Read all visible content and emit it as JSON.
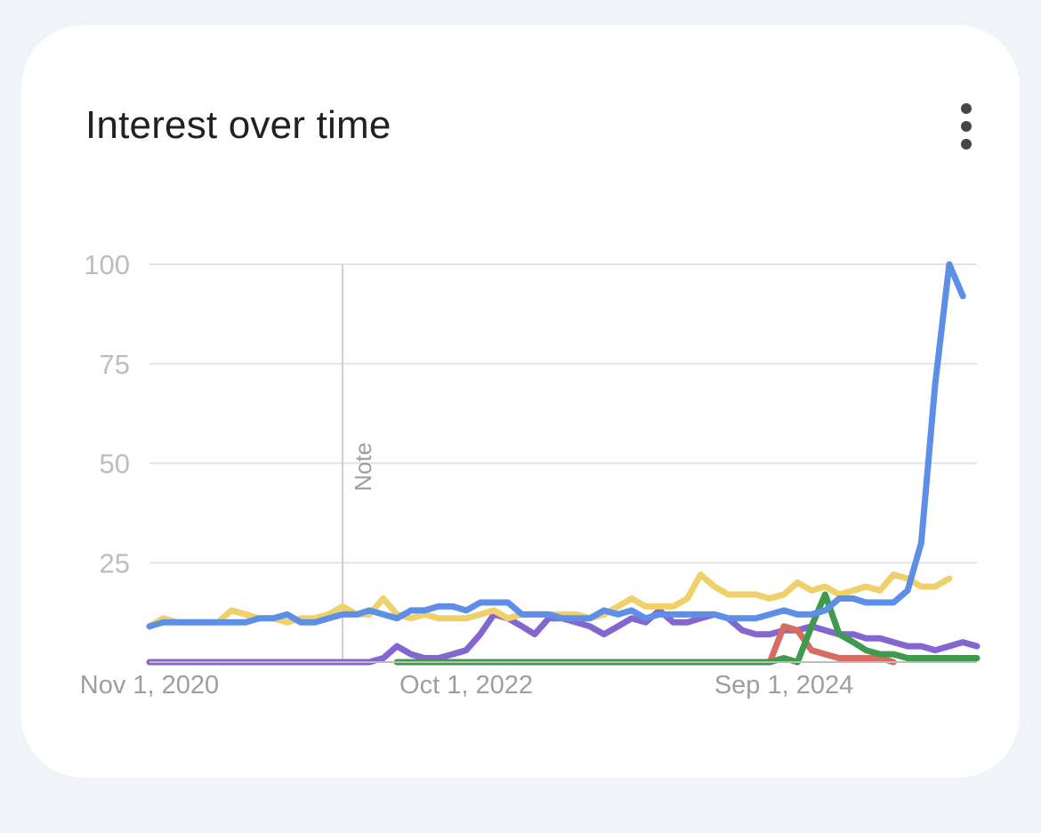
{
  "card": {
    "title": "Interest over time",
    "menu_icon": "more-vert-icon"
  },
  "chart_data": {
    "type": "line",
    "x_range": [
      "2020-11-01",
      "2025-11-01"
    ],
    "xtick_labels": [
      "Nov 1, 2020",
      "Oct 1, 2022",
      "Sep 1, 2024"
    ],
    "xtick_dates": [
      "2020-11-01",
      "2022-10-01",
      "2024-09-01"
    ],
    "ylim": [
      0,
      100
    ],
    "yticks": [
      25,
      50,
      75,
      100
    ],
    "grid": true,
    "annotation": {
      "label": "Note",
      "date": "2022-01-01"
    },
    "series": [
      {
        "color": "#5e8fe8",
        "points": [
          [
            "2020-11-01",
            9
          ],
          [
            "2020-12-01",
            10
          ],
          [
            "2021-01-01",
            10
          ],
          [
            "2021-02-01",
            10
          ],
          [
            "2021-03-01",
            10
          ],
          [
            "2021-04-01",
            10
          ],
          [
            "2021-05-01",
            10
          ],
          [
            "2021-06-01",
            10
          ],
          [
            "2021-07-01",
            11
          ],
          [
            "2021-08-01",
            11
          ],
          [
            "2021-09-01",
            12
          ],
          [
            "2021-10-01",
            10
          ],
          [
            "2021-11-01",
            10
          ],
          [
            "2021-12-01",
            11
          ],
          [
            "2022-01-01",
            12
          ],
          [
            "2022-02-01",
            12
          ],
          [
            "2022-03-01",
            13
          ],
          [
            "2022-04-01",
            12
          ],
          [
            "2022-05-01",
            11
          ],
          [
            "2022-06-01",
            13
          ],
          [
            "2022-07-01",
            13
          ],
          [
            "2022-08-01",
            14
          ],
          [
            "2022-09-01",
            14
          ],
          [
            "2022-10-01",
            13
          ],
          [
            "2022-11-01",
            15
          ],
          [
            "2022-12-01",
            15
          ],
          [
            "2023-01-01",
            15
          ],
          [
            "2023-02-01",
            12
          ],
          [
            "2023-03-01",
            12
          ],
          [
            "2023-04-01",
            12
          ],
          [
            "2023-05-01",
            11
          ],
          [
            "2023-06-01",
            11
          ],
          [
            "2023-07-01",
            11
          ],
          [
            "2023-08-01",
            13
          ],
          [
            "2023-09-01",
            12
          ],
          [
            "2023-10-01",
            13
          ],
          [
            "2023-11-01",
            11
          ],
          [
            "2023-12-01",
            12
          ],
          [
            "2024-01-01",
            12
          ],
          [
            "2024-02-01",
            12
          ],
          [
            "2024-03-01",
            12
          ],
          [
            "2024-04-01",
            12
          ],
          [
            "2024-05-01",
            11
          ],
          [
            "2024-06-01",
            11
          ],
          [
            "2024-07-01",
            11
          ],
          [
            "2024-08-01",
            12
          ],
          [
            "2024-09-01",
            13
          ],
          [
            "2024-10-01",
            12
          ],
          [
            "2024-11-01",
            12
          ],
          [
            "2024-12-01",
            13
          ],
          [
            "2025-01-01",
            16
          ],
          [
            "2025-02-01",
            16
          ],
          [
            "2025-03-01",
            15
          ],
          [
            "2025-04-01",
            15
          ],
          [
            "2025-05-01",
            15
          ],
          [
            "2025-06-01",
            18
          ],
          [
            "2025-07-01",
            30
          ],
          [
            "2025-08-01",
            70
          ],
          [
            "2025-09-01",
            100
          ],
          [
            "2025-10-01",
            92
          ]
        ]
      },
      {
        "color": "#efd06b",
        "points": [
          [
            "2020-11-01",
            9
          ],
          [
            "2020-12-01",
            11
          ],
          [
            "2021-01-01",
            10
          ],
          [
            "2021-02-01",
            10
          ],
          [
            "2021-03-01",
            10
          ],
          [
            "2021-04-01",
            10
          ],
          [
            "2021-05-01",
            13
          ],
          [
            "2021-06-01",
            12
          ],
          [
            "2021-07-01",
            11
          ],
          [
            "2021-08-01",
            11
          ],
          [
            "2021-09-01",
            10
          ],
          [
            "2021-10-01",
            11
          ],
          [
            "2021-11-01",
            11
          ],
          [
            "2021-12-01",
            12
          ],
          [
            "2022-01-01",
            14
          ],
          [
            "2022-02-01",
            12
          ],
          [
            "2022-03-01",
            12
          ],
          [
            "2022-04-01",
            16
          ],
          [
            "2022-05-01",
            12
          ],
          [
            "2022-06-01",
            11
          ],
          [
            "2022-07-01",
            12
          ],
          [
            "2022-08-01",
            11
          ],
          [
            "2022-09-01",
            11
          ],
          [
            "2022-10-01",
            11
          ],
          [
            "2022-11-01",
            12
          ],
          [
            "2022-12-01",
            13
          ],
          [
            "2023-01-01",
            11
          ],
          [
            "2023-02-01",
            12
          ],
          [
            "2023-03-01",
            12
          ],
          [
            "2023-04-01",
            12
          ],
          [
            "2023-05-01",
            12
          ],
          [
            "2023-06-01",
            12
          ],
          [
            "2023-07-01",
            11
          ],
          [
            "2023-08-01",
            12
          ],
          [
            "2023-09-01",
            14
          ],
          [
            "2023-10-01",
            16
          ],
          [
            "2023-11-01",
            14
          ],
          [
            "2023-12-01",
            14
          ],
          [
            "2024-01-01",
            14
          ],
          [
            "2024-02-01",
            16
          ],
          [
            "2024-03-01",
            22
          ],
          [
            "2024-04-01",
            19
          ],
          [
            "2024-05-01",
            17
          ],
          [
            "2024-06-01",
            17
          ],
          [
            "2024-07-01",
            17
          ],
          [
            "2024-08-01",
            16
          ],
          [
            "2024-09-01",
            17
          ],
          [
            "2024-10-01",
            20
          ],
          [
            "2024-11-01",
            18
          ],
          [
            "2024-12-01",
            19
          ],
          [
            "2025-01-01",
            17
          ],
          [
            "2025-02-01",
            18
          ],
          [
            "2025-03-01",
            19
          ],
          [
            "2025-04-01",
            18
          ],
          [
            "2025-05-01",
            22
          ],
          [
            "2025-06-01",
            21
          ],
          [
            "2025-07-01",
            19
          ],
          [
            "2025-08-01",
            19
          ],
          [
            "2025-09-01",
            21
          ]
        ]
      },
      {
        "color": "#8466d0",
        "points": [
          [
            "2020-11-01",
            0
          ],
          [
            "2021-06-01",
            0
          ],
          [
            "2022-03-01",
            0
          ],
          [
            "2022-04-01",
            1
          ],
          [
            "2022-05-01",
            4
          ],
          [
            "2022-06-01",
            2
          ],
          [
            "2022-07-01",
            1
          ],
          [
            "2022-08-01",
            1
          ],
          [
            "2022-09-01",
            2
          ],
          [
            "2022-10-01",
            3
          ],
          [
            "2022-11-01",
            7
          ],
          [
            "2022-12-01",
            12
          ],
          [
            "2023-01-01",
            11
          ],
          [
            "2023-02-01",
            9
          ],
          [
            "2023-03-01",
            7
          ],
          [
            "2023-04-01",
            11
          ],
          [
            "2023-05-01",
            11
          ],
          [
            "2023-06-01",
            10
          ],
          [
            "2023-07-01",
            9
          ],
          [
            "2023-08-01",
            7
          ],
          [
            "2023-09-01",
            9
          ],
          [
            "2023-10-01",
            11
          ],
          [
            "2023-11-01",
            10
          ],
          [
            "2023-12-01",
            13
          ],
          [
            "2024-01-01",
            10
          ],
          [
            "2024-02-01",
            10
          ],
          [
            "2024-03-01",
            11
          ],
          [
            "2024-04-01",
            12
          ],
          [
            "2024-05-01",
            11
          ],
          [
            "2024-06-01",
            8
          ],
          [
            "2024-07-01",
            7
          ],
          [
            "2024-08-01",
            7
          ],
          [
            "2024-09-01",
            8
          ],
          [
            "2024-10-01",
            8
          ],
          [
            "2024-11-01",
            9
          ],
          [
            "2024-12-01",
            8
          ],
          [
            "2025-01-01",
            7
          ],
          [
            "2025-02-01",
            7
          ],
          [
            "2025-03-01",
            6
          ],
          [
            "2025-04-01",
            6
          ],
          [
            "2025-05-01",
            5
          ],
          [
            "2025-06-01",
            4
          ],
          [
            "2025-07-01",
            4
          ],
          [
            "2025-08-01",
            3
          ],
          [
            "2025-09-01",
            4
          ],
          [
            "2025-10-01",
            5
          ],
          [
            "2025-11-01",
            4
          ]
        ]
      },
      {
        "color": "#d66c62",
        "points": [
          [
            "2024-08-01",
            0
          ],
          [
            "2024-09-01",
            9
          ],
          [
            "2024-10-01",
            8
          ],
          [
            "2024-11-01",
            3
          ],
          [
            "2024-12-01",
            2
          ],
          [
            "2025-01-01",
            1
          ],
          [
            "2025-02-01",
            1
          ],
          [
            "2025-03-01",
            1
          ],
          [
            "2025-04-01",
            1
          ],
          [
            "2025-05-01",
            0
          ]
        ]
      },
      {
        "color": "#3f9a4d",
        "points": [
          [
            "2022-05-01",
            0
          ],
          [
            "2024-08-01",
            0
          ],
          [
            "2024-09-01",
            1
          ],
          [
            "2024-10-01",
            0
          ],
          [
            "2024-11-01",
            9
          ],
          [
            "2024-12-01",
            17
          ],
          [
            "2025-01-01",
            7
          ],
          [
            "2025-02-01",
            5
          ],
          [
            "2025-03-01",
            3
          ],
          [
            "2025-04-01",
            2
          ],
          [
            "2025-05-01",
            2
          ],
          [
            "2025-06-01",
            1
          ],
          [
            "2025-07-01",
            1
          ],
          [
            "2025-08-01",
            1
          ],
          [
            "2025-09-01",
            1
          ],
          [
            "2025-10-01",
            1
          ],
          [
            "2025-11-01",
            1
          ]
        ]
      }
    ]
  }
}
